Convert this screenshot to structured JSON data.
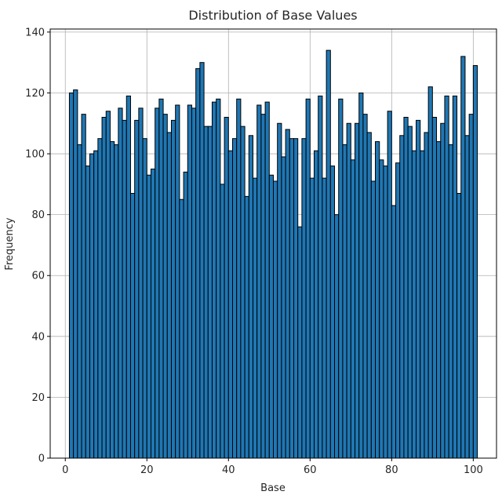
{
  "chart_data": {
    "type": "bar",
    "title": "Distribution of Base Values",
    "xlabel": "Base",
    "ylabel": "Frequency",
    "xlim": [
      -3.7,
      105.7
    ],
    "ylim": [
      0,
      141
    ],
    "xticks": [
      0,
      20,
      40,
      60,
      80,
      100
    ],
    "yticks": [
      0,
      20,
      40,
      60,
      80,
      100,
      120,
      140
    ],
    "grid": true,
    "bar_color": "#1f77b4",
    "edge_color": "#000000",
    "x_start": 1,
    "bin_width": 1,
    "values": [
      120,
      121,
      103,
      113,
      96,
      100,
      101,
      105,
      112,
      114,
      104,
      103,
      115,
      111,
      119,
      87,
      111,
      115,
      105,
      93,
      95,
      115,
      118,
      113,
      107,
      111,
      116,
      85,
      94,
      116,
      115,
      128,
      130,
      109,
      109,
      117,
      118,
      90,
      112,
      101,
      105,
      118,
      109,
      86,
      106,
      92,
      116,
      113,
      117,
      93,
      91,
      110,
      99,
      108,
      105,
      105,
      76,
      105,
      118,
      92,
      101,
      119,
      92,
      134,
      96,
      80,
      118,
      103,
      110,
      98,
      110,
      120,
      113,
      107,
      91,
      104,
      98,
      96,
      114,
      83,
      97,
      106,
      112,
      109,
      101,
      111,
      101,
      107,
      122,
      112,
      104,
      110,
      119,
      103,
      119,
      87,
      132,
      106,
      113,
      129
    ]
  }
}
